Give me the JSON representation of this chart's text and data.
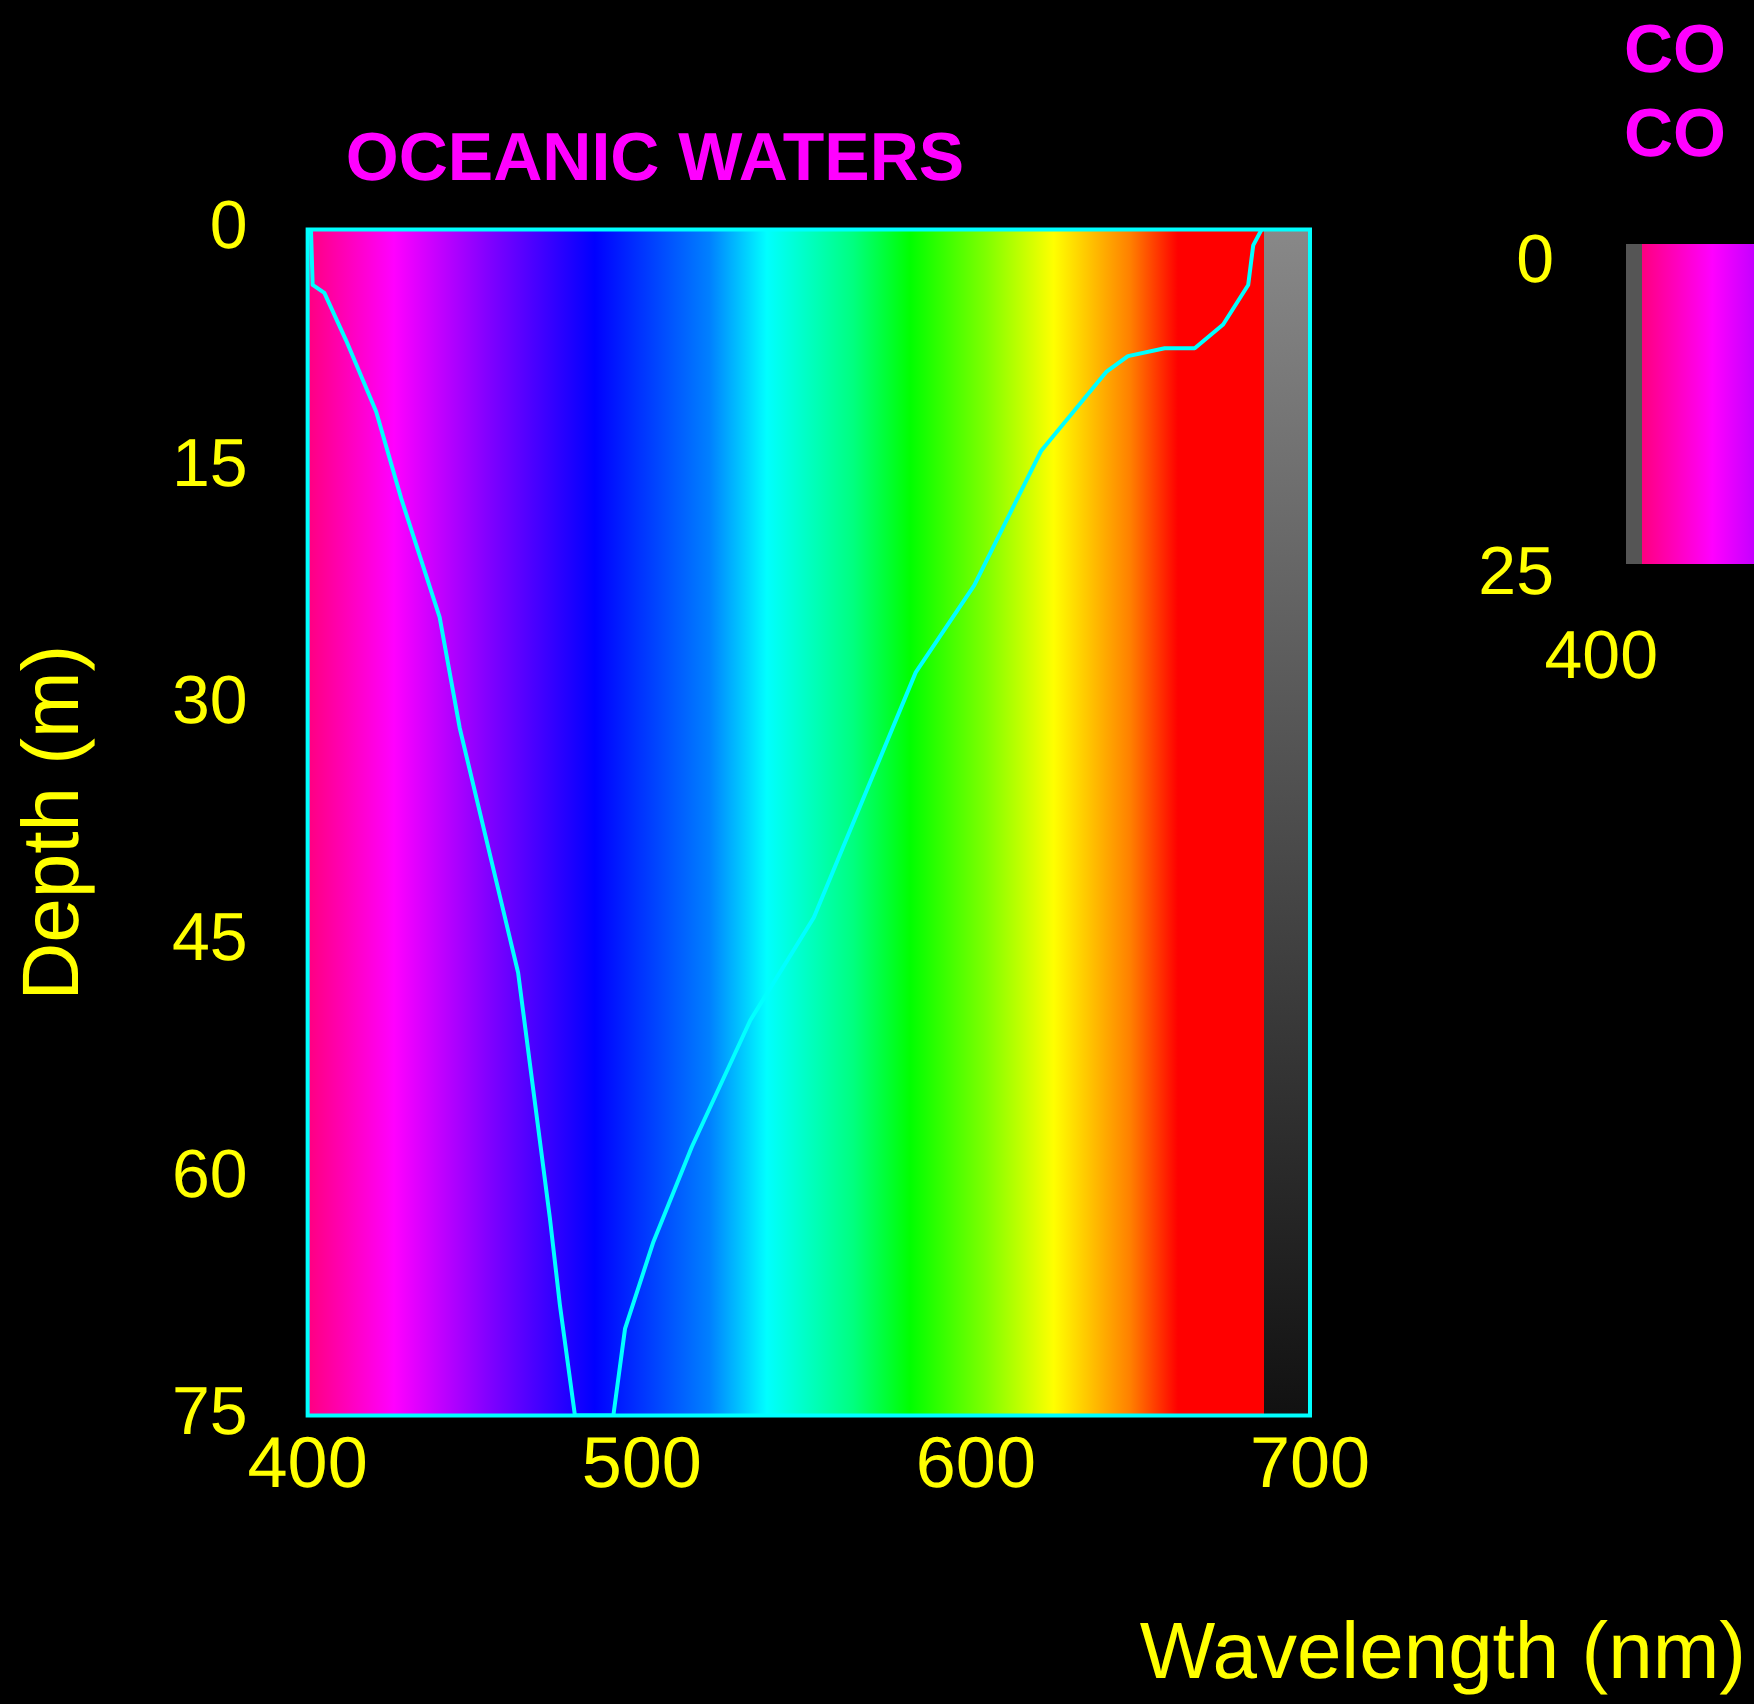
{
  "chart_data": [
    {
      "type": "line",
      "title": "OCEANIC WATERS",
      "xlabel": "Wavelength (nm)",
      "ylabel": "Depth (m)",
      "xlim": [
        400,
        700
      ],
      "xticks": [
        400,
        500,
        600,
        700
      ],
      "ylim": [
        75,
        0
      ],
      "yticks": [
        0,
        15,
        30,
        45,
        60,
        75
      ],
      "marker": "none",
      "series": [
        {
          "color": "#00ffff",
          "x": [
            401,
            401.5,
            405,
            411.5,
            420.5,
            428,
            439.5,
            445.5,
            463,
            472.5,
            475.5,
            480,
            491.5,
            495,
            503.5,
            515,
            532.5,
            551.5,
            582,
            599.5,
            619.5,
            639,
            645.5,
            656.5,
            665.5,
            674,
            681.5,
            683,
            685.5
          ],
          "values": [
            0,
            3.5,
            4,
            7,
            11.5,
            17,
            24.5,
            31.5,
            47,
            62.5,
            68,
            75,
            75,
            69.5,
            64,
            58,
            50,
            43.5,
            28,
            22.5,
            14,
            9,
            8,
            7.5,
            7.5,
            6,
            3.5,
            1,
            0
          ]
        }
      ]
    },
    {
      "type": "other",
      "title": "CO\nCO",
      "annotations": [
        "0",
        "25",
        "400"
      ]
    }
  ]
}
